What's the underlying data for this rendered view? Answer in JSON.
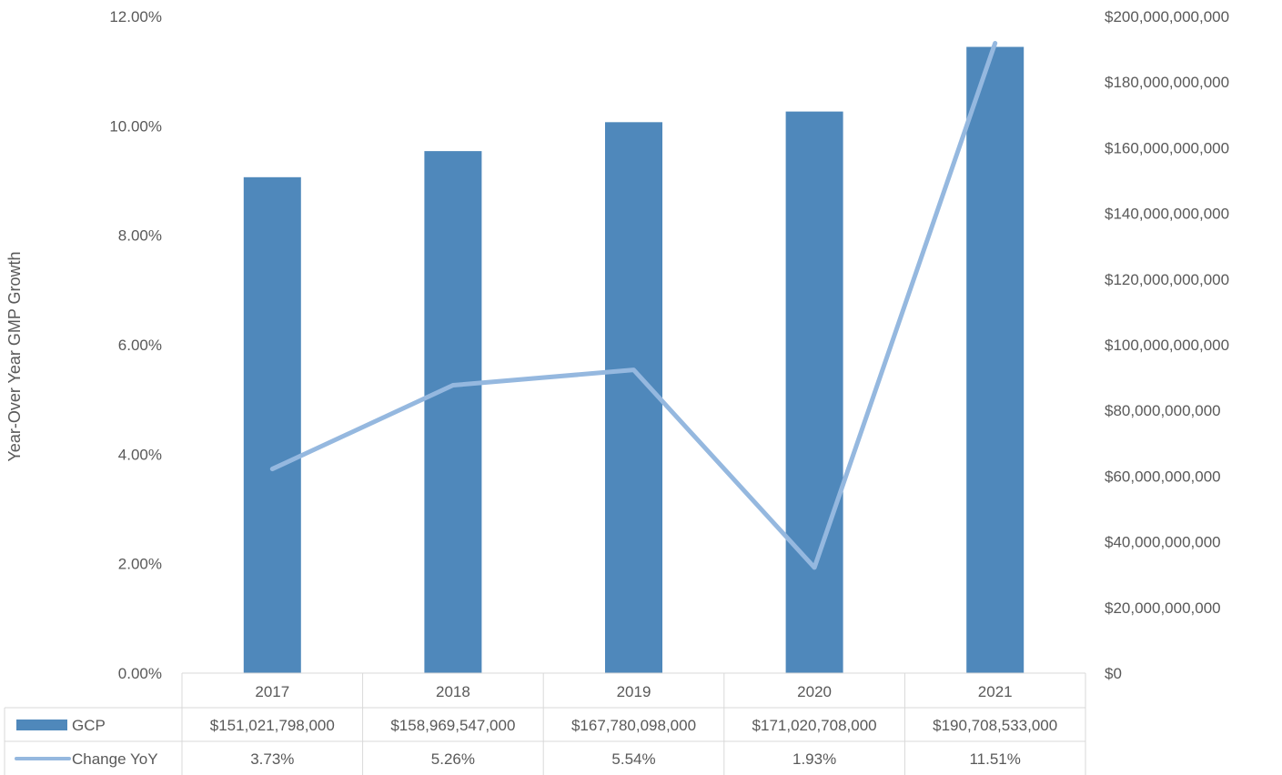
{
  "chart_data": {
    "type": "bar",
    "categories": [
      "2017",
      "2018",
      "2019",
      "2020",
      "2021"
    ],
    "series": [
      {
        "name": "GCP",
        "type": "bar",
        "axis": "right",
        "values": [
          151021798000,
          158969547000,
          167780098000,
          171020708000,
          190708533000
        ],
        "labels": [
          "$151,021,798,000",
          "$158,969,547,000",
          "$167,780,098,000",
          "$171,020,708,000",
          "$190,708,533,000"
        ],
        "color": "#4F88BB"
      },
      {
        "name": "Change YoY",
        "type": "line",
        "axis": "left",
        "values": [
          3.73,
          5.26,
          5.54,
          1.93,
          11.51
        ],
        "labels": [
          "3.73%",
          "5.26%",
          "5.54%",
          "1.93%",
          "11.51%"
        ],
        "color": "#95B8DF"
      }
    ],
    "ylabel": "Year-Over Year GMP Growth",
    "ylim": [
      0,
      12
    ],
    "y_ticks": [
      "0.00%",
      "2.00%",
      "4.00%",
      "6.00%",
      "8.00%",
      "10.00%",
      "12.00%"
    ],
    "y2lim": [
      0,
      200000000000
    ],
    "y2_ticks": [
      "$0",
      "$20,000,000,000",
      "$40,000,000,000",
      "$60,000,000,000",
      "$80,000,000,000",
      "$100,000,000,000",
      "$120,000,000,000",
      "$140,000,000,000",
      "$160,000,000,000",
      "$180,000,000,000",
      "$200,000,000,000"
    ],
    "grid": false,
    "legend": "data-table"
  }
}
